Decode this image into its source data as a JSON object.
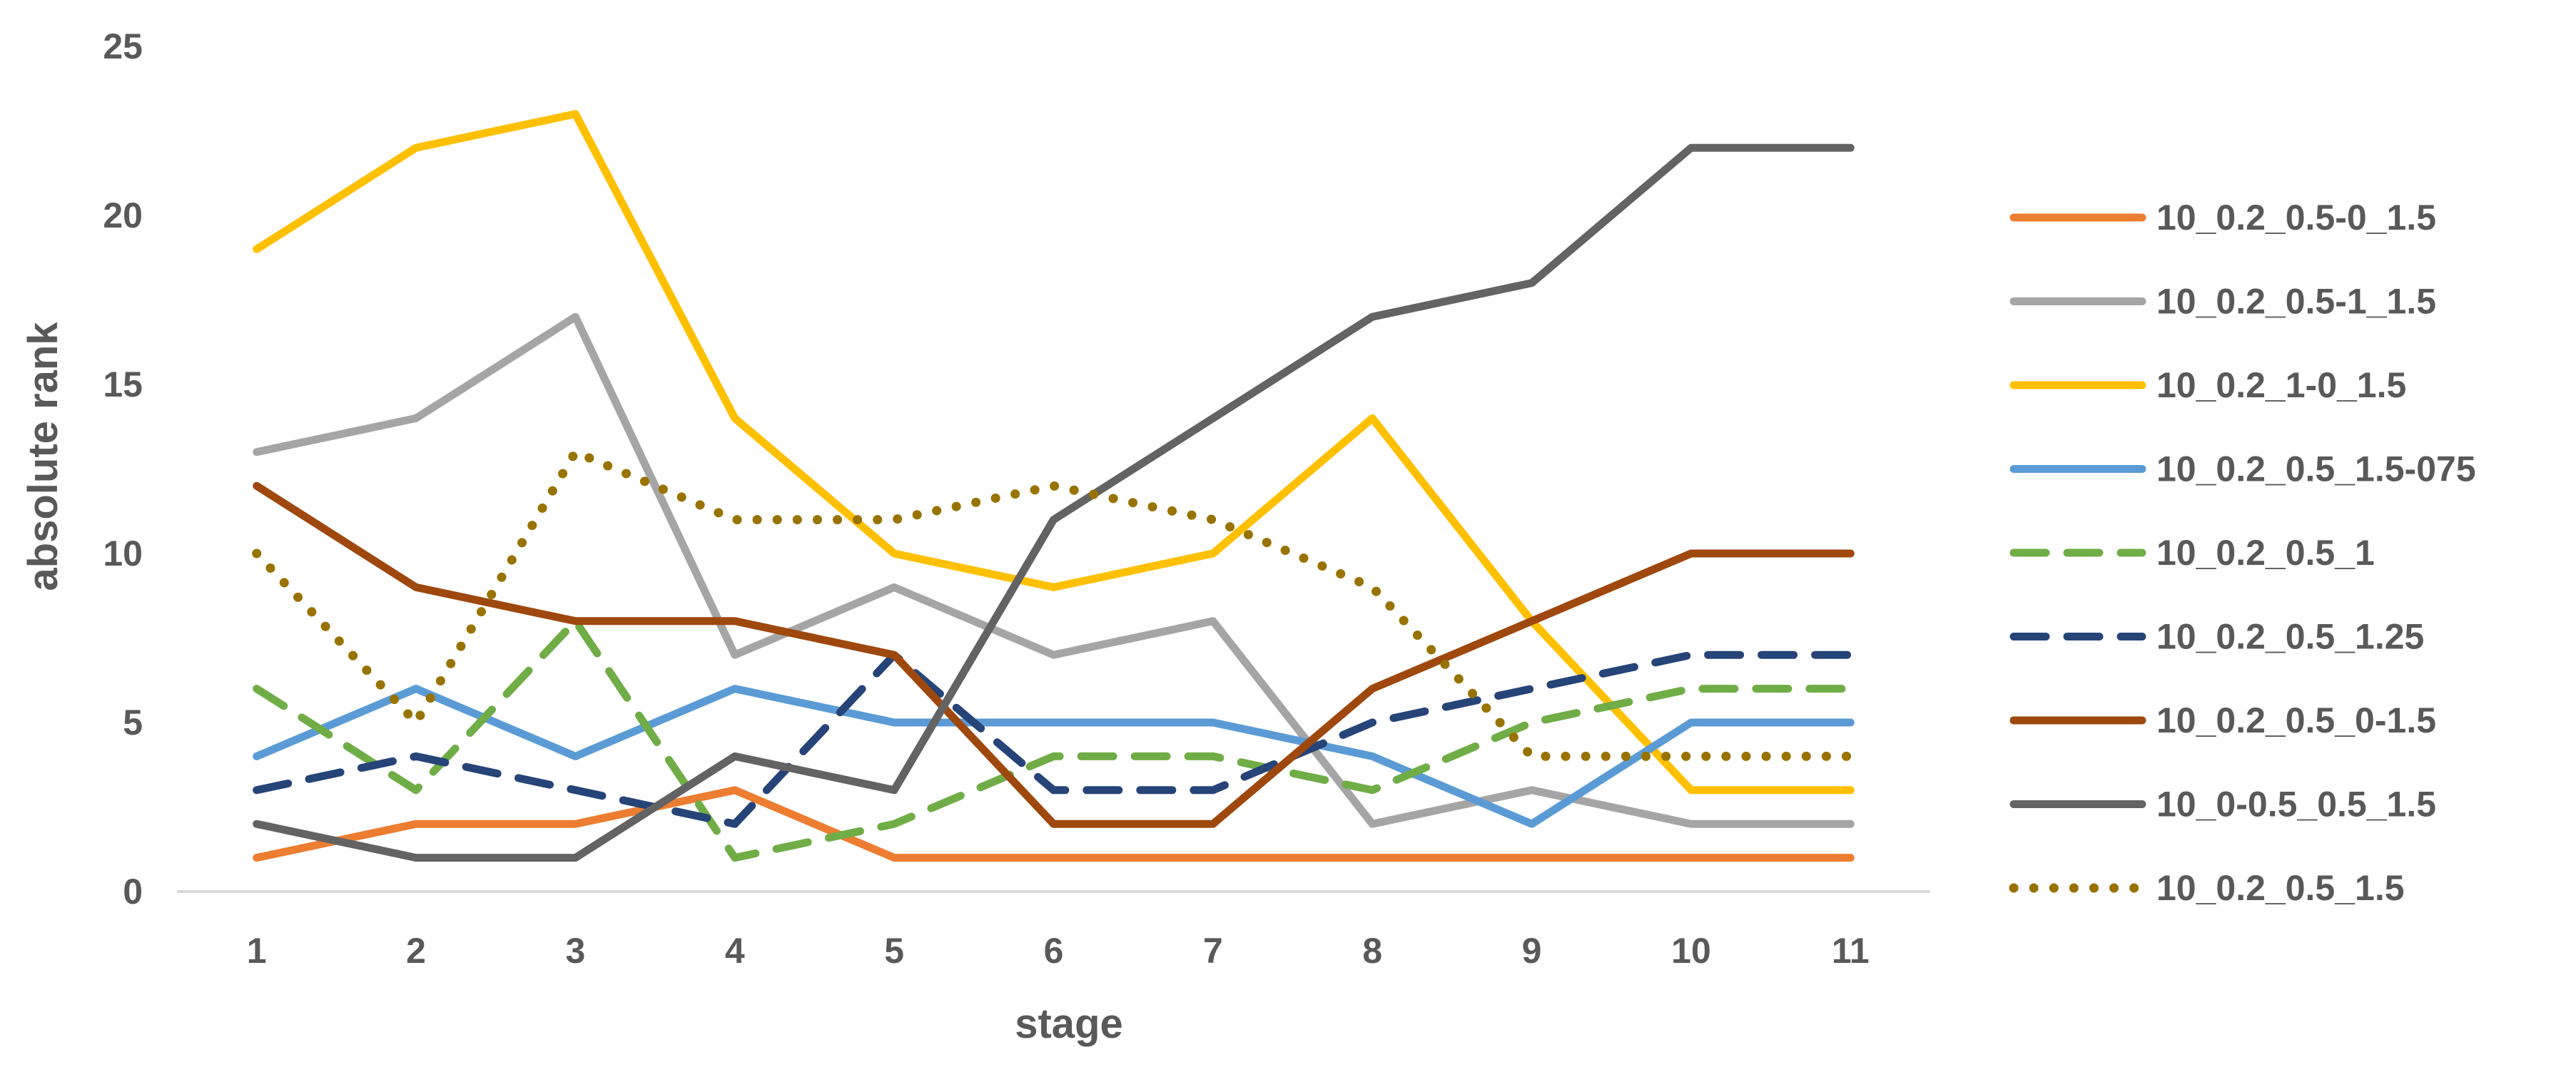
{
  "chart_data": {
    "type": "line",
    "title": "",
    "xlabel": "stage",
    "ylabel": "absolute rank",
    "ylim": [
      0,
      25
    ],
    "yticks": [
      "0",
      "5",
      "10",
      "15",
      "20",
      "25"
    ],
    "categories": [
      "1",
      "2",
      "3",
      "4",
      "5",
      "6",
      "7",
      "8",
      "9",
      "10",
      "11"
    ],
    "grid": false,
    "legend_position": "right",
    "series": [
      {
        "name": "10_0.2_0.5-0_1.5",
        "color": "#ED7D31",
        "dash": "solid",
        "values": [
          1,
          2,
          2,
          3,
          1,
          1,
          1,
          1,
          1,
          1,
          1
        ]
      },
      {
        "name": "10_0.2_0.5-1_1.5",
        "color": "#A5A5A5",
        "dash": "solid",
        "values": [
          13,
          14,
          17,
          7,
          9,
          7,
          8,
          2,
          3,
          2,
          2
        ]
      },
      {
        "name": "10_0.2_1-0_1.5",
        "color": "#FFC000",
        "dash": "solid",
        "values": [
          19,
          22,
          23,
          14,
          10,
          9,
          10,
          14,
          8,
          3,
          3
        ]
      },
      {
        "name": "10_0.2_0.5_1.5-075",
        "color": "#5B9BD5",
        "dash": "solid",
        "values": [
          4,
          6,
          4,
          6,
          5,
          5,
          5,
          4,
          2,
          5,
          5
        ]
      },
      {
        "name": "10_0.2_0.5_1",
        "color": "#70AD47",
        "dash": "dash",
        "values": [
          6,
          3,
          8,
          1,
          2,
          4,
          4,
          3,
          5,
          6,
          6
        ]
      },
      {
        "name": "10_0.2_0.5_1.25",
        "color": "#264478",
        "dash": "dash",
        "values": [
          3,
          4,
          3,
          2,
          7,
          3,
          3,
          5,
          6,
          7,
          7
        ]
      },
      {
        "name": "10_0.2_0.5_0-1.5",
        "color": "#9E480E",
        "dash": "solid",
        "values": [
          12,
          9,
          8,
          8,
          7,
          2,
          2,
          6,
          8,
          10,
          10
        ]
      },
      {
        "name": "10_0-0.5_0.5_1.5",
        "color": "#636363",
        "dash": "solid",
        "values": [
          2,
          1,
          1,
          4,
          3,
          11,
          14,
          17,
          18,
          22,
          22
        ]
      },
      {
        "name": "10_0.2_0.5_1.5",
        "color": "#997300",
        "dash": "dot",
        "values": [
          10,
          5,
          13,
          11,
          11,
          12,
          11,
          9,
          4,
          4,
          4
        ]
      }
    ]
  }
}
